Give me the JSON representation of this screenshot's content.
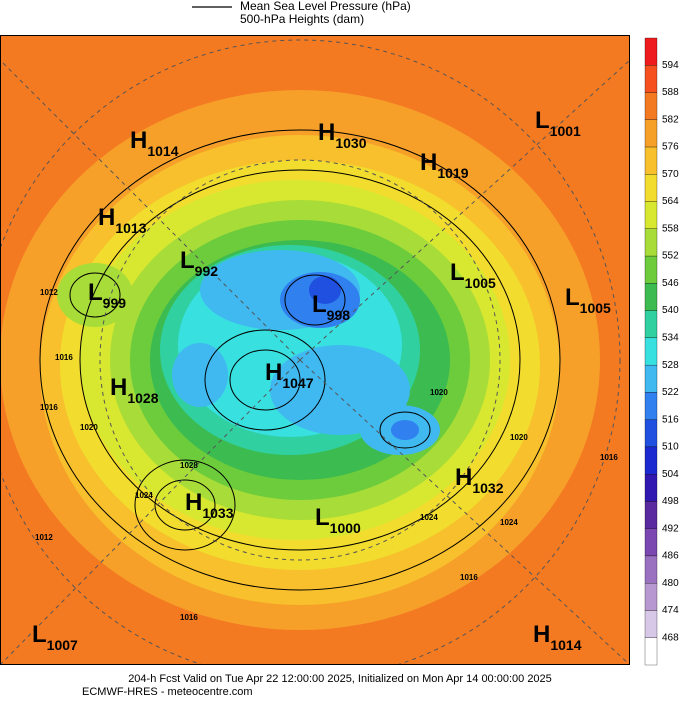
{
  "legend": [
    "Mean Sea Level Pressure (hPa)",
    "500-hPa Heights (dam)"
  ],
  "colorbar": {
    "ticks": [
      594,
      588,
      582,
      576,
      570,
      564,
      558,
      552,
      546,
      540,
      534,
      528,
      522,
      516,
      510,
      504,
      498,
      492,
      486,
      480,
      474,
      468
    ],
    "colors": [
      "#ee1c1c",
      "#f5501e",
      "#f47a22",
      "#f6a02a",
      "#f7c02c",
      "#f2dc2e",
      "#d8e830",
      "#a8dc38",
      "#6ccc3c",
      "#3cbc50",
      "#30d0a0",
      "#38e0e0",
      "#40b8f0",
      "#3080f0",
      "#2050e0",
      "#1a2ad0",
      "#3018b0",
      "#5a2aa0",
      "#7a48b0",
      "#9a70c0",
      "#b898d0",
      "#d8c8e8",
      "#ffffff"
    ]
  },
  "centers": [
    {
      "type": "H",
      "value": "1014"
    },
    {
      "type": "H",
      "value": "1030"
    },
    {
      "type": "H",
      "value": "1019"
    },
    {
      "type": "L",
      "value": "1001"
    },
    {
      "type": "H",
      "value": "1013"
    },
    {
      "type": "L",
      "value": "992"
    },
    {
      "type": "L",
      "value": "999"
    },
    {
      "type": "L",
      "value": "1005"
    },
    {
      "type": "L",
      "value": "1005"
    },
    {
      "type": "L",
      "value": "998"
    },
    {
      "type": "H",
      "value": "1028"
    },
    {
      "type": "H",
      "value": "1047"
    },
    {
      "type": "H",
      "value": "1032"
    },
    {
      "type": "H",
      "value": "1033"
    },
    {
      "type": "L",
      "value": "1000"
    },
    {
      "type": "L",
      "value": "1007"
    },
    {
      "type": "H",
      "value": "1014"
    }
  ],
  "isobar_labels": [
    "1012",
    "1016",
    "1016",
    "1020",
    "1028",
    "1024",
    "1012",
    "1016",
    "1020",
    "1016",
    "1024",
    "1024",
    "1016",
    "1020"
  ],
  "footer": [
    "204-h Fcst Valid on Tue Apr 22 12:00:00 2025, Initialized on Mon Apr 14 00:00:00 2025",
    "ECMWF-HRES  - meteocentre.com"
  ]
}
